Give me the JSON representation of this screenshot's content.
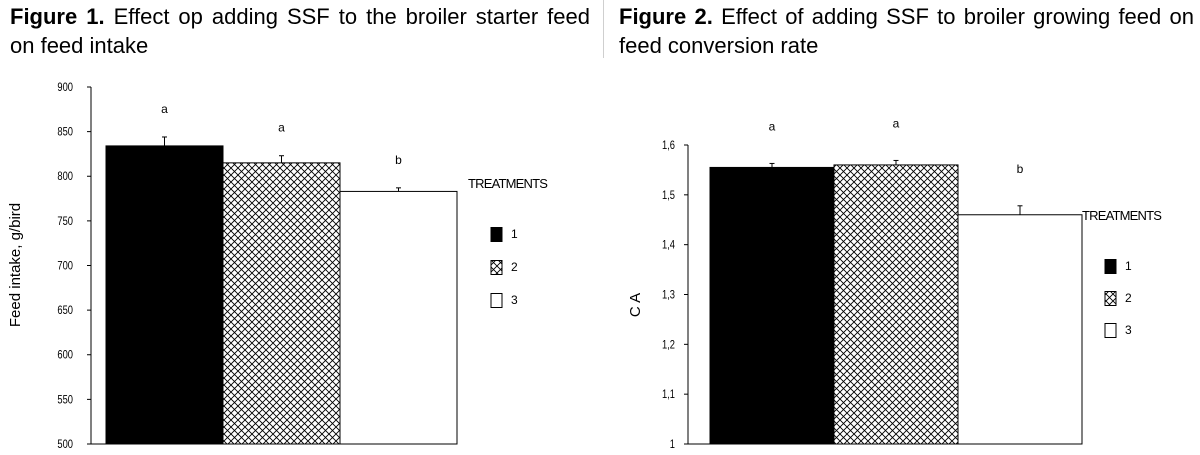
{
  "figures": [
    {
      "caption_label": "Figure 1.",
      "caption_text": "Effect op adding SSF to the broiler starter feed on feed intake",
      "chart_data": {
        "type": "bar",
        "categories": [
          "1",
          "2",
          "3"
        ],
        "values": [
          834,
          815,
          783
        ],
        "errors": [
          10,
          8,
          4
        ],
        "significance": [
          "a",
          "a",
          "b"
        ],
        "patterns": [
          "solid",
          "crosshatch",
          "empty"
        ],
        "title": "",
        "xlabel": "",
        "ylabel": "Feed intake, g/bird",
        "ylim": [
          500,
          900
        ],
        "yticks": [
          500,
          550,
          600,
          650,
          700,
          750,
          800,
          850,
          900
        ],
        "ytick_labels": [
          "500",
          "550",
          "600",
          "650",
          "700",
          "750",
          "800",
          "850",
          "900"
        ],
        "legend_title": "TREATMENTS",
        "legend_labels": [
          "1",
          "2",
          "3"
        ],
        "legend_position": "right",
        "grid": false
      }
    },
    {
      "caption_label": "Figure 2.",
      "caption_text": "Effect of adding SSF to broiler growing feed on feed conversion rate",
      "chart_data": {
        "type": "bar",
        "categories": [
          "1",
          "2",
          "3"
        ],
        "values": [
          1.555,
          1.56,
          1.46
        ],
        "errors": [
          0.008,
          0.009,
          0.018
        ],
        "significance": [
          "a",
          "a",
          "b"
        ],
        "patterns": [
          "solid",
          "crosshatch",
          "empty"
        ],
        "title": "",
        "xlabel": "",
        "ylabel": "C A",
        "ylim": [
          1,
          1.6
        ],
        "yticks": [
          1,
          1.1,
          1.2,
          1.3,
          1.4,
          1.5,
          1.6
        ],
        "ytick_labels": [
          "1",
          "1,1",
          "1,2",
          "1,3",
          "1,4",
          "1,5",
          "1,6"
        ],
        "legend_title": "TREATMENTS",
        "legend_labels": [
          "1",
          "2",
          "3"
        ],
        "legend_position": "right",
        "grid": false
      }
    }
  ]
}
